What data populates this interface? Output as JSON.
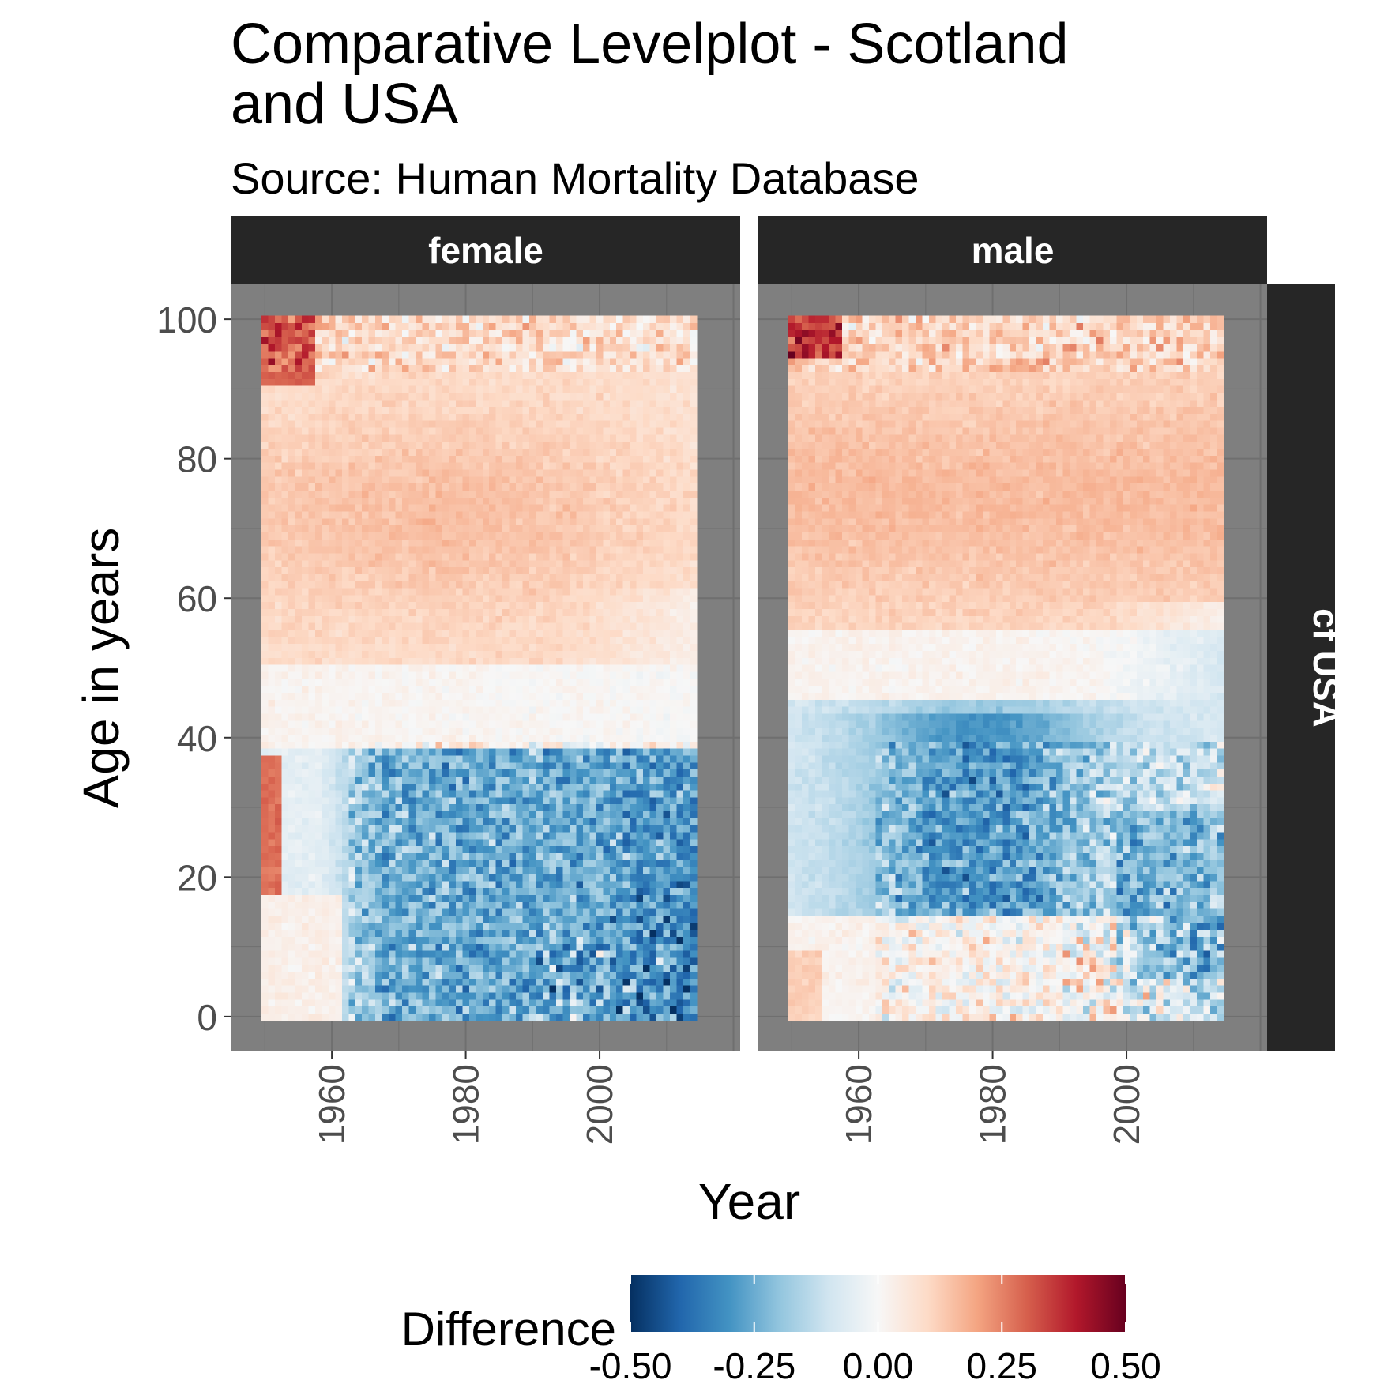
{
  "title": [
    "Comparative Levelplot - Scotland",
    "and USA"
  ],
  "subtitle": "Source: Human Mortality Database",
  "chart_data": {
    "type": "heatmap",
    "title": "Comparative Levelplot - Scotland and USA",
    "subtitle": "Source: Human Mortality Database",
    "xlabel": "Year",
    "ylabel": "Age in years",
    "x_range": [
      1950,
      2014
    ],
    "y_range": [
      0,
      100
    ],
    "xlim": [
      1945,
      2021
    ],
    "ylim": [
      -5,
      105
    ],
    "x_ticks": [
      1960,
      1980,
      2000
    ],
    "y_ticks": [
      0,
      20,
      40,
      60,
      80,
      100
    ],
    "row_strip": "cf USA",
    "panels": [
      {
        "label": "female",
        "regions": [
          {
            "years": [
              1950,
              2014
            ],
            "ages": [
              55,
              100
            ],
            "difference": 0.15,
            "note": "older ages higher (red)"
          },
          {
            "years": [
              1975,
              1985
            ],
            "ages": [
              60,
              80
            ],
            "difference": 0.2
          },
          {
            "years": [
              1950,
              1953
            ],
            "ages": [
              15,
              35
            ],
            "difference": 0.3
          },
          {
            "years": [
              1963,
              2014
            ],
            "ages": [
              0,
              35
            ],
            "difference": -0.25
          },
          {
            "years": [
              2005,
              2014
            ],
            "ages": [
              0,
              15
            ],
            "difference": -0.4
          },
          {
            "years": [
              1950,
              1956
            ],
            "ages": [
              92,
              100
            ],
            "difference": 0.35
          }
        ]
      },
      {
        "label": "male",
        "regions": [
          {
            "years": [
              1950,
              2014
            ],
            "ages": [
              55,
              100
            ],
            "difference": 0.15,
            "note": "older ages higher (red)"
          },
          {
            "years": [
              1950,
              1960
            ],
            "ages": [
              15,
              50
            ],
            "difference": -0.15
          },
          {
            "years": [
              1963,
              1995
            ],
            "ages": [
              15,
              45
            ],
            "difference": -0.3
          },
          {
            "years": [
              2000,
              2014
            ],
            "ages": [
              0,
              30
            ],
            "difference": -0.35
          },
          {
            "years": [
              1950,
              1958
            ],
            "ages": [
              94,
              100
            ],
            "difference": 0.4
          }
        ]
      }
    ],
    "legend": {
      "title": "Difference",
      "position": "bottom",
      "limits": [
        -0.5,
        0.5
      ],
      "breaks": [
        "-0.50",
        "-0.25",
        "0.00",
        "0.25",
        "0.50"
      ],
      "palette": [
        "#053061",
        "#2166ac",
        "#4393c3",
        "#92c5de",
        "#d1e5f0",
        "#f7f7f7",
        "#fddbc7",
        "#f4a582",
        "#d6604d",
        "#b2182b",
        "#67001f"
      ]
    },
    "colors": {
      "panel_background": "#7f7f7f",
      "gridline": "#6f6f6f",
      "strip_background": "#262626",
      "strip_text": "#ffffff"
    }
  }
}
